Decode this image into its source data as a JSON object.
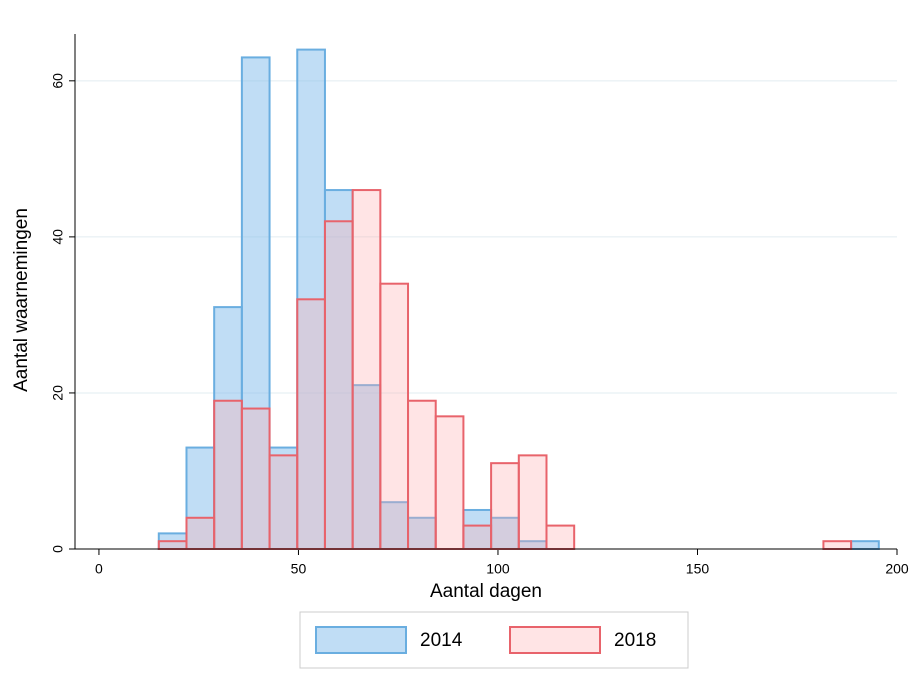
{
  "chart_data": {
    "type": "histogram",
    "xlabel": "Aantal dagen",
    "ylabel": "Aantal waarnemingen",
    "bins": [
      15,
      21.94,
      28.88,
      35.82,
      42.76,
      49.7,
      56.64,
      63.58,
      70.52,
      77.46,
      84.4,
      91.34,
      98.28,
      105.22,
      112.16,
      119.1,
      126.04,
      132.98,
      139.92,
      146.86,
      153.8,
      160.74,
      167.68,
      174.62,
      181.56,
      188.5,
      195.44
    ],
    "series": [
      {
        "name": "2014",
        "color": "#6aaee0",
        "fill": "rgba(130,188,236,0.5)",
        "values": [
          2,
          13,
          31,
          63,
          13,
          64,
          46,
          21,
          6,
          4,
          0,
          5,
          4,
          1,
          0,
          0,
          0,
          0,
          0,
          0,
          0,
          0,
          0,
          0,
          0,
          1
        ]
      },
      {
        "name": "2018",
        "color": "#e8636b",
        "fill": "rgba(255,170,175,0.32)",
        "values": [
          1,
          4,
          19,
          18,
          12,
          32,
          42,
          46,
          34,
          19,
          17,
          3,
          11,
          12,
          3,
          0,
          0,
          0,
          0,
          0,
          0,
          0,
          0,
          0,
          1,
          0
        ]
      }
    ],
    "xlim": [
      -6,
      200
    ],
    "xticks": [
      0,
      50,
      100,
      150,
      200
    ],
    "ylim": [
      0,
      66
    ],
    "yticks": [
      0,
      20,
      40,
      60
    ],
    "grid": true,
    "legend": "bottom"
  }
}
